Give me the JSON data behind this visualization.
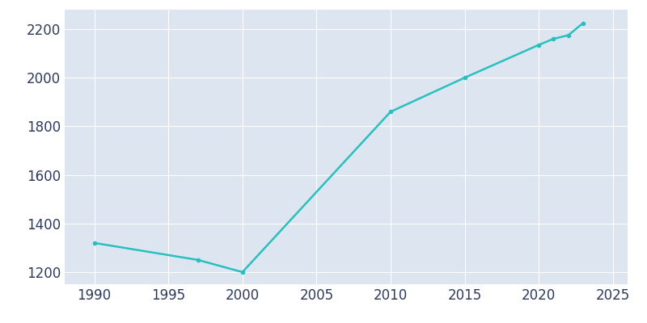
{
  "years": [
    1990,
    1997,
    2000,
    2010,
    2015,
    2020,
    2021,
    2022,
    2023
  ],
  "population": [
    1320,
    1250,
    1200,
    1860,
    2000,
    2135,
    2160,
    2175,
    2225
  ],
  "line_color": "#2abfbf",
  "axes_background_color": "#dde6f0",
  "figure_background_color": "#ffffff",
  "xlim": [
    1988,
    2026
  ],
  "ylim": [
    1150,
    2280
  ],
  "xticks": [
    1990,
    1995,
    2000,
    2005,
    2010,
    2015,
    2020,
    2025
  ],
  "yticks": [
    1200,
    1400,
    1600,
    1800,
    2000,
    2200
  ],
  "linewidth": 1.8,
  "figsize": [
    8.0,
    4.0
  ],
  "dpi": 100,
  "tick_labelsize": 12,
  "tick_color": "#2d3a5a"
}
